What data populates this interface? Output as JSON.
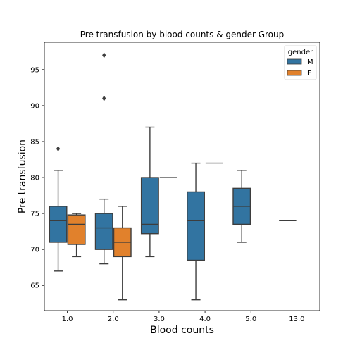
{
  "chart_data": {
    "type": "box",
    "title": "Pre transfusion by blood counts & gender Group",
    "xlabel": "Blood counts",
    "ylabel": "Pre transfusion",
    "categories": [
      "1.0",
      "2.0",
      "3.0",
      "4.0",
      "5.0",
      "13.0"
    ],
    "ylim": [
      61.5,
      98.8
    ],
    "yticks": [
      65,
      70,
      75,
      80,
      85,
      90,
      95
    ],
    "grid": false,
    "legend": {
      "title": "gender",
      "position": "top-right",
      "entries": [
        "M",
        "F"
      ]
    },
    "series": [
      {
        "name": "M",
        "color": "#3274a1",
        "boxes": [
          {
            "category": "1.0",
            "whisker_low": 67,
            "q1": 71,
            "median": 74,
            "q3": 76,
            "whisker_high": 81,
            "outliers": [
              84
            ]
          },
          {
            "category": "2.0",
            "whisker_low": 68,
            "q1": 70,
            "median": 73,
            "q3": 75,
            "whisker_high": 77,
            "outliers": [
              91,
              97
            ]
          },
          {
            "category": "3.0",
            "whisker_low": 69,
            "q1": 72.2,
            "median": 73.5,
            "q3": 80,
            "whisker_high": 87,
            "outliers": []
          },
          {
            "category": "4.0",
            "whisker_low": 63,
            "q1": 68.5,
            "median": 74,
            "q3": 78,
            "whisker_high": 82,
            "outliers": []
          },
          {
            "category": "5.0",
            "whisker_low": 71,
            "q1": 73.5,
            "median": 76,
            "q3": 78.5,
            "whisker_high": 81,
            "outliers": []
          },
          {
            "category": "13.0",
            "whisker_low": 74,
            "q1": 74,
            "median": 74,
            "q3": 74,
            "whisker_high": 74,
            "outliers": []
          }
        ]
      },
      {
        "name": "F",
        "color": "#e1812c",
        "boxes": [
          {
            "category": "1.0",
            "whisker_low": 69,
            "q1": 70.7,
            "median": 73.5,
            "q3": 74.8,
            "whisker_high": 75,
            "outliers": []
          },
          {
            "category": "2.0",
            "whisker_low": 63,
            "q1": 69,
            "median": 71,
            "q3": 73,
            "whisker_high": 76,
            "outliers": []
          },
          {
            "category": "3.0",
            "whisker_low": 80,
            "q1": 80,
            "median": 80,
            "q3": 80,
            "whisker_high": 80,
            "outliers": []
          },
          {
            "category": "4.0",
            "whisker_low": 82,
            "q1": 82,
            "median": 82,
            "q3": 82,
            "whisker_high": 82,
            "outliers": []
          }
        ]
      }
    ]
  }
}
